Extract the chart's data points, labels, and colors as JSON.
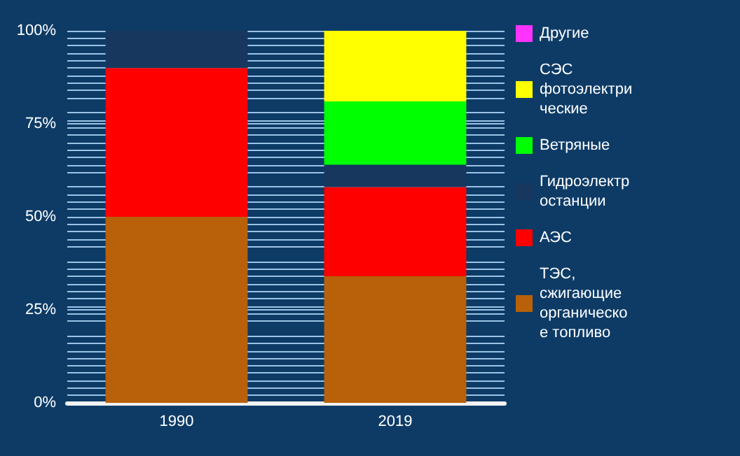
{
  "chart_data": {
    "type": "bar",
    "stacked": true,
    "categories": [
      "1990",
      "2019"
    ],
    "series": [
      {
        "name": "ТЭС, сжигающие органическое топливо",
        "color": "#b8600a",
        "values": [
          50,
          34
        ]
      },
      {
        "name": "АЭС",
        "color": "#ff0000",
        "values": [
          40,
          24
        ]
      },
      {
        "name": "Гидроэлектростанции",
        "color": "#17375e",
        "values": [
          10,
          6
        ]
      },
      {
        "name": "Ветряные",
        "color": "#00ff00",
        "values": [
          0,
          17
        ]
      },
      {
        "name": "СЭС фотоэлектрические",
        "color": "#ffff00",
        "values": [
          0,
          19
        ]
      },
      {
        "name": "Другие",
        "color": "#ff33ff",
        "values": [
          0,
          0
        ]
      }
    ],
    "ylim": [
      0,
      100
    ],
    "yticks": [
      {
        "value": 0,
        "label": "0%"
      },
      {
        "value": 25,
        "label": "25%"
      },
      {
        "value": 50,
        "label": "50%"
      },
      {
        "value": 75,
        "label": "75%"
      },
      {
        "value": 100,
        "label": "100%"
      }
    ],
    "grid": true,
    "legend": "right"
  }
}
